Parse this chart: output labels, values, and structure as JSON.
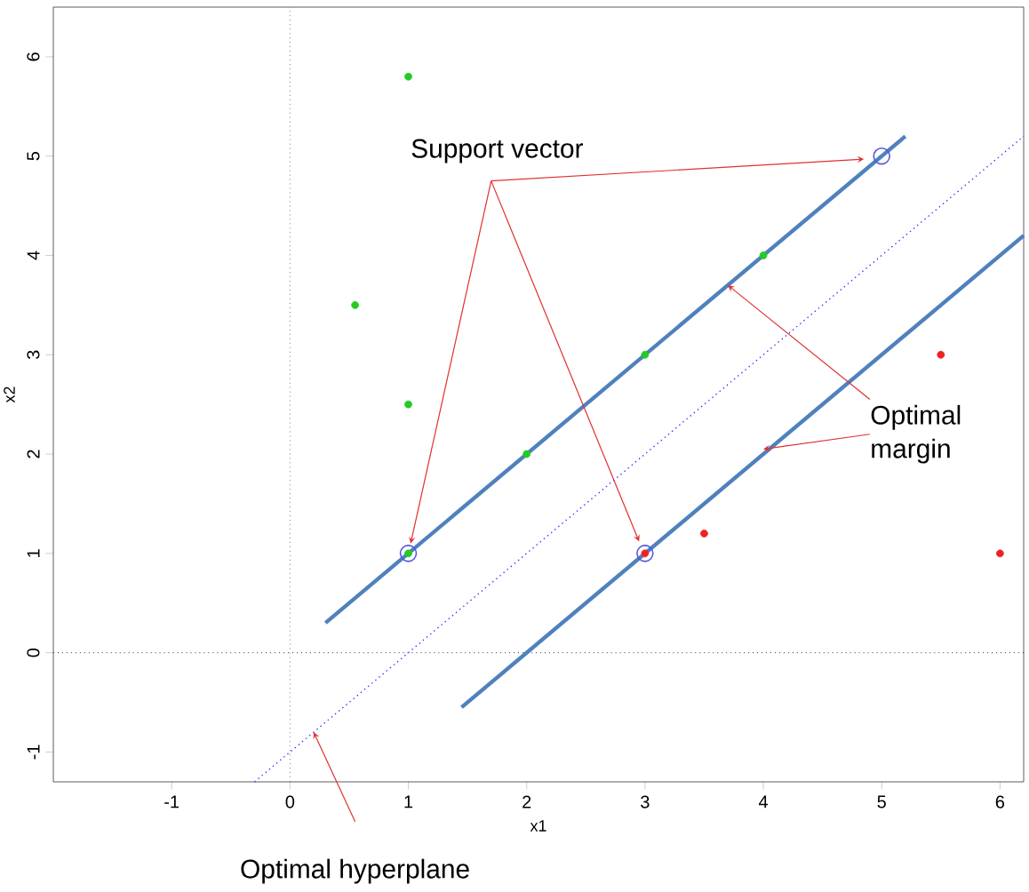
{
  "chart_data": {
    "type": "scatter",
    "xlabel": "x1",
    "ylabel": "x2",
    "xlim": [
      -2,
      6.2
    ],
    "ylim": [
      -1.3,
      6.5
    ],
    "xticks": [
      -1,
      0,
      1,
      2,
      3,
      4,
      5,
      6
    ],
    "yticks": [
      -1,
      0,
      1,
      2,
      3,
      4,
      5,
      6
    ],
    "series": [
      {
        "type": "scatter",
        "color": "#22cc22",
        "marker": "circle",
        "x": [
          1,
          0.55,
          1,
          2,
          3,
          4,
          1
        ],
        "values": [
          5.8,
          3.5,
          2.5,
          2,
          3,
          4,
          1
        ]
      },
      {
        "type": "scatter",
        "color": "#ee2222",
        "marker": "circle",
        "x": [
          3,
          3.5,
          5.5,
          6
        ],
        "values": [
          1,
          1.2,
          3,
          1
        ]
      },
      {
        "type": "line",
        "color": "#4f81bd",
        "line_style": "solid",
        "x": [
          0.3,
          5.2
        ],
        "values": [
          0.3,
          5.2
        ]
      },
      {
        "type": "line",
        "color": "#4f81bd",
        "line_style": "solid",
        "x": [
          1.45,
          6.2
        ],
        "values": [
          -0.55,
          4.2
        ]
      },
      {
        "type": "line",
        "color": "#3333ff",
        "line_style": "dotted",
        "x": [
          -0.3,
          6.2
        ],
        "values": [
          -1.3,
          5.2
        ]
      },
      {
        "type": "scatter",
        "color": "#5555dd",
        "marker": "circle",
        "x": [
          1,
          3,
          5
        ],
        "values": [
          1,
          1,
          5
        ]
      }
    ],
    "ref_lines": [
      {
        "axis": "x",
        "value": 0,
        "line_style": "dotted",
        "color": "#777777"
      },
      {
        "axis": "y",
        "value": 0,
        "line_style": "dotted",
        "color": "#333333"
      }
    ],
    "annotations": [
      {
        "text": "Support vector",
        "x": 1,
        "y": 1
      },
      {
        "text": "Optimal margin",
        "x": 3.7,
        "y": 3.7
      },
      "Optimal hyperplane"
    ]
  }
}
